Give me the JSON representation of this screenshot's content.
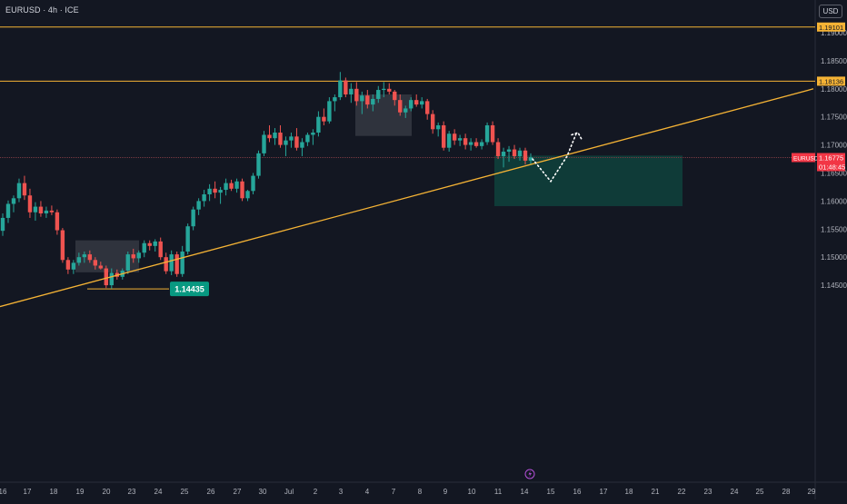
{
  "header": {
    "symbol_title": "EURUSD · 4h · ICE",
    "currency": "USD"
  },
  "colors": {
    "background": "#131722",
    "up": "#26a69a",
    "down": "#ef5350",
    "level_line": "#f5b335",
    "target_zone": "#0f3d3a",
    "box": "#3a3d47",
    "price_tag": "#f23645",
    "green_tag": "#089981",
    "axis_text": "#b2b5be",
    "path": "#ffffff"
  },
  "chart_data": {
    "type": "candlestick",
    "timeframe": "4h",
    "ylim": [
      1.141,
      1.1935
    ],
    "x_ticks": [
      "16",
      "17",
      "18",
      "19",
      "20",
      "23",
      "24",
      "25",
      "26",
      "27",
      "30",
      "Jul",
      "2",
      "3",
      "4",
      "7",
      "8",
      "9",
      "10",
      "11",
      "14",
      "15",
      "16",
      "17",
      "18",
      "21",
      "22",
      "23",
      "24",
      "25",
      "28",
      "29"
    ],
    "y_ticks": [
      "1.14500",
      "1.15000",
      "1.15500",
      "1.16000",
      "1.16500",
      "1.17000",
      "1.17500",
      "1.18000",
      "1.18500",
      "1.19000"
    ],
    "candles": [
      [
        1.1547,
        1.1578,
        1.1538,
        1.157
      ],
      [
        1.157,
        1.1601,
        1.1561,
        1.1595
      ],
      [
        1.1595,
        1.161,
        1.158,
        1.1605
      ],
      [
        1.1605,
        1.164,
        1.1598,
        1.1632
      ],
      [
        1.1632,
        1.1645,
        1.1602,
        1.161
      ],
      [
        1.161,
        1.1622,
        1.157,
        1.158
      ],
      [
        1.158,
        1.1598,
        1.1565,
        1.159
      ],
      [
        1.159,
        1.16,
        1.1572,
        1.1578
      ],
      [
        1.1578,
        1.159,
        1.157,
        1.1583
      ],
      [
        1.1583,
        1.1592,
        1.1575,
        1.158
      ],
      [
        1.158,
        1.1585,
        1.154,
        1.1548
      ],
      [
        1.1548,
        1.1552,
        1.149,
        1.1495
      ],
      [
        1.1495,
        1.15,
        1.147,
        1.1478
      ],
      [
        1.1478,
        1.1495,
        1.147,
        1.149
      ],
      [
        1.149,
        1.1508,
        1.1485,
        1.15
      ],
      [
        1.15,
        1.151,
        1.149,
        1.1505
      ],
      [
        1.1505,
        1.1512,
        1.149,
        1.1495
      ],
      [
        1.1495,
        1.15,
        1.1478,
        1.1485
      ],
      [
        1.1485,
        1.1492,
        1.1478,
        1.148
      ],
      [
        1.148,
        1.1485,
        1.1445,
        1.145
      ],
      [
        1.145,
        1.148,
        1.1444,
        1.1472
      ],
      [
        1.1472,
        1.1478,
        1.146,
        1.1465
      ],
      [
        1.1465,
        1.148,
        1.146,
        1.1476
      ],
      [
        1.1476,
        1.151,
        1.147,
        1.1505
      ],
      [
        1.1505,
        1.1515,
        1.149,
        1.1498
      ],
      [
        1.1498,
        1.1512,
        1.149,
        1.1508
      ],
      [
        1.1508,
        1.153,
        1.15,
        1.1525
      ],
      [
        1.1525,
        1.153,
        1.1512,
        1.152
      ],
      [
        1.152,
        1.1532,
        1.151,
        1.1528
      ],
      [
        1.1528,
        1.1535,
        1.1495,
        1.15
      ],
      [
        1.15,
        1.1508,
        1.147,
        1.1475
      ],
      [
        1.1475,
        1.1512,
        1.1468,
        1.1505
      ],
      [
        1.1505,
        1.151,
        1.1465,
        1.147
      ],
      [
        1.147,
        1.152,
        1.1465,
        1.151
      ],
      [
        1.151,
        1.156,
        1.1505,
        1.1555
      ],
      [
        1.1555,
        1.159,
        1.1548,
        1.1585
      ],
      [
        1.1585,
        1.1605,
        1.1575,
        1.16
      ],
      [
        1.16,
        1.162,
        1.159,
        1.1612
      ],
      [
        1.1612,
        1.163,
        1.16,
        1.1622
      ],
      [
        1.1622,
        1.1635,
        1.1605,
        1.1615
      ],
      [
        1.1615,
        1.1625,
        1.1595,
        1.162
      ],
      [
        1.162,
        1.164,
        1.161,
        1.1632
      ],
      [
        1.1632,
        1.1638,
        1.1618,
        1.1622
      ],
      [
        1.1622,
        1.164,
        1.1615,
        1.1635
      ],
      [
        1.1635,
        1.164,
        1.16,
        1.1605
      ],
      [
        1.1605,
        1.162,
        1.16,
        1.1618
      ],
      [
        1.1618,
        1.165,
        1.1612,
        1.1645
      ],
      [
        1.1645,
        1.169,
        1.164,
        1.1685
      ],
      [
        1.1685,
        1.1725,
        1.168,
        1.1718
      ],
      [
        1.1718,
        1.1735,
        1.1705,
        1.1712
      ],
      [
        1.1712,
        1.173,
        1.17,
        1.1722
      ],
      [
        1.1722,
        1.1735,
        1.1695,
        1.17
      ],
      [
        1.17,
        1.1715,
        1.168,
        1.1708
      ],
      [
        1.1708,
        1.1722,
        1.1695,
        1.1715
      ],
      [
        1.1715,
        1.173,
        1.169,
        1.1695
      ],
      [
        1.1695,
        1.1712,
        1.168,
        1.1705
      ],
      [
        1.1705,
        1.1722,
        1.1698,
        1.1718
      ],
      [
        1.1718,
        1.1728,
        1.17,
        1.1722
      ],
      [
        1.1722,
        1.176,
        1.1715,
        1.175
      ],
      [
        1.175,
        1.1765,
        1.1735,
        1.1742
      ],
      [
        1.1742,
        1.1785,
        1.1738,
        1.1778
      ],
      [
        1.1778,
        1.179,
        1.176,
        1.1785
      ],
      [
        1.1785,
        1.183,
        1.178,
        1.1815
      ],
      [
        1.1815,
        1.182,
        1.1785,
        1.179
      ],
      [
        1.179,
        1.181,
        1.1775,
        1.18
      ],
      [
        1.18,
        1.1812,
        1.177,
        1.1778
      ],
      [
        1.1778,
        1.1795,
        1.1755,
        1.1788
      ],
      [
        1.1788,
        1.1798,
        1.1765,
        1.1772
      ],
      [
        1.1772,
        1.179,
        1.176,
        1.1782
      ],
      [
        1.1782,
        1.1805,
        1.1775,
        1.1798
      ],
      [
        1.1798,
        1.1812,
        1.1785,
        1.18
      ],
      [
        1.18,
        1.181,
        1.179,
        1.1795
      ],
      [
        1.1795,
        1.1798,
        1.177,
        1.178
      ],
      [
        1.178,
        1.179,
        1.1752,
        1.1758
      ],
      [
        1.1758,
        1.177,
        1.1748,
        1.1765
      ],
      [
        1.1765,
        1.1785,
        1.176,
        1.178
      ],
      [
        1.178,
        1.179,
        1.1768,
        1.1772
      ],
      [
        1.1772,
        1.1785,
        1.1765,
        1.1778
      ],
      [
        1.1778,
        1.1782,
        1.1745,
        1.1755
      ],
      [
        1.1755,
        1.1762,
        1.172,
        1.1728
      ],
      [
        1.1728,
        1.174,
        1.1715,
        1.1735
      ],
      [
        1.1735,
        1.1742,
        1.169,
        1.1695
      ],
      [
        1.1695,
        1.1725,
        1.1688,
        1.172
      ],
      [
        1.172,
        1.1728,
        1.17,
        1.1708
      ],
      [
        1.1708,
        1.1718,
        1.1698,
        1.1712
      ],
      [
        1.1712,
        1.172,
        1.1692,
        1.17
      ],
      [
        1.17,
        1.1712,
        1.169,
        1.1705
      ],
      [
        1.1705,
        1.1712,
        1.1695,
        1.1698
      ],
      [
        1.1698,
        1.171,
        1.1692,
        1.1705
      ],
      [
        1.1705,
        1.174,
        1.17,
        1.1735
      ],
      [
        1.1735,
        1.1742,
        1.17,
        1.1705
      ],
      [
        1.1705,
        1.1712,
        1.1675,
        1.168
      ],
      [
        1.168,
        1.1695,
        1.166,
        1.1688
      ],
      [
        1.1688,
        1.1698,
        1.167,
        1.1692
      ],
      [
        1.1692,
        1.17,
        1.1675,
        1.168
      ],
      [
        1.168,
        1.1695,
        1.1672,
        1.169
      ],
      [
        1.169,
        1.1695,
        1.1665,
        1.1672
      ],
      [
        1.1672,
        1.1685,
        1.1665,
        1.1678
      ]
    ]
  },
  "annotations": {
    "resistance_label": "1.19101",
    "level_label": "1.18136",
    "current_price_label": "1.16775",
    "countdown_label": "01:48:45",
    "symbol_tag": "EURUSD",
    "low_marker_label": "1.14435",
    "event_icon": "lightning-bolt-icon"
  }
}
